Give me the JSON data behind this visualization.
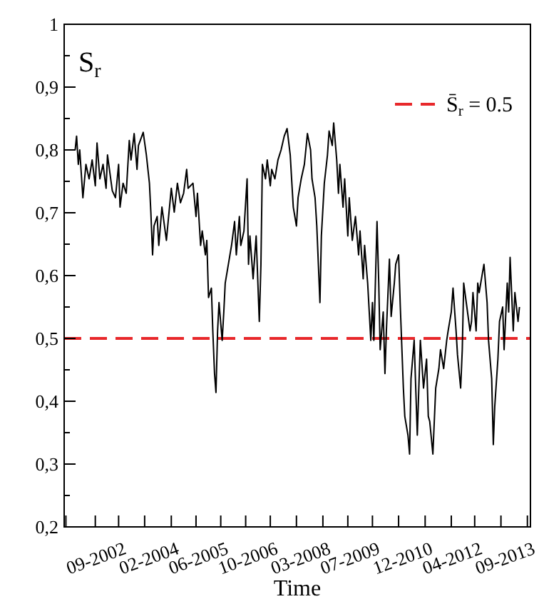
{
  "chart_data": {
    "type": "line",
    "xlabel": "Time",
    "annotations": [
      "S$_{r}$"
    ],
    "x": [
      "2001-07-01",
      "2001-07-15",
      "2001-08-01",
      "2001-08-15",
      "2001-09-15",
      "2001-10-15",
      "2001-11-15",
      "2001-12-15",
      "2002-01-15",
      "2002-02-01",
      "2002-03-01",
      "2002-04-01",
      "2002-05-01",
      "2002-05-15",
      "2002-07-01",
      "2002-08-01",
      "2002-09-01",
      "2002-09-15",
      "2002-10-15",
      "2002-11-15",
      "2002-12-15",
      "2003-01-01",
      "2003-02-01",
      "2003-03-01",
      "2003-03-15",
      "2003-05-01",
      "2003-06-01",
      "2003-07-01",
      "2003-07-15",
      "2003-08-01",
      "2003-08-15",
      "2003-09-15",
      "2003-10-01",
      "2003-11-01",
      "2003-12-15",
      "2004-01-01",
      "2004-02-01",
      "2004-03-01",
      "2004-04-01",
      "2004-05-01",
      "2004-06-01",
      "2004-07-01",
      "2004-07-15",
      "2004-09-01",
      "2004-10-01",
      "2004-10-15",
      "2004-11-15",
      "2004-12-01",
      "2005-01-01",
      "2005-01-15",
      "2005-02-01",
      "2005-03-01",
      "2005-03-15",
      "2005-04-01",
      "2005-04-15",
      "2005-05-01",
      "2005-05-15",
      "2005-06-15",
      "2005-07-01",
      "2005-07-15",
      "2005-08-15",
      "2005-09-15",
      "2005-10-15",
      "2005-11-01",
      "2005-12-01",
      "2005-12-15",
      "2006-01-15",
      "2006-02-15",
      "2006-03-01",
      "2006-03-15",
      "2006-04-15",
      "2006-05-15",
      "2006-06-01",
      "2006-06-15",
      "2006-07-01",
      "2006-07-15",
      "2006-08-15",
      "2006-09-01",
      "2006-10-01",
      "2006-10-15",
      "2006-11-15",
      "2006-12-15",
      "2007-01-15",
      "2007-02-15",
      "2007-03-15",
      "2007-04-15",
      "2007-05-01",
      "2007-05-15",
      "2007-06-15",
      "2007-07-01",
      "2007-08-01",
      "2007-09-01",
      "2007-10-01",
      "2007-11-01",
      "2007-11-15",
      "2007-12-15",
      "2008-01-01",
      "2008-02-01",
      "2008-02-15",
      "2008-03-15",
      "2008-04-15",
      "2008-05-01",
      "2008-06-01",
      "2008-06-15",
      "2008-07-15",
      "2008-08-01",
      "2008-08-15",
      "2008-09-15",
      "2008-10-01",
      "2008-11-01",
      "2008-11-15",
      "2008-12-15",
      "2009-01-15",
      "2009-02-15",
      "2009-03-01",
      "2009-04-01",
      "2009-04-15",
      "2009-05-15",
      "2009-06-15",
      "2009-07-01",
      "2009-07-15",
      "2009-08-15",
      "2009-09-01",
      "2009-09-15",
      "2009-10-15",
      "2009-11-01",
      "2009-11-15",
      "2009-12-15",
      "2010-01-01",
      "2010-02-01",
      "2010-02-15",
      "2010-03-15",
      "2010-04-01",
      "2010-05-01",
      "2010-05-15",
      "2010-06-15",
      "2010-07-01",
      "2010-07-15",
      "2010-08-15",
      "2010-09-01",
      "2010-09-15",
      "2010-10-15",
      "2010-11-15",
      "2010-12-15",
      "2011-01-01",
      "2011-01-15",
      "2011-02-15",
      "2011-03-15",
      "2011-04-15",
      "2011-05-01",
      "2011-06-01",
      "2011-07-01",
      "2011-07-15",
      "2011-08-15",
      "2011-09-01",
      "2011-10-01",
      "2011-10-15",
      "2011-11-15",
      "2011-12-01",
      "2011-12-15",
      "2012-01-15",
      "2012-02-15",
      "2012-03-01",
      "2012-03-15",
      "2012-04-15",
      "2012-05-01",
      "2012-05-15",
      "2012-06-15",
      "2012-07-01",
      "2012-08-01",
      "2012-08-15",
      "2012-09-15",
      "2012-10-01",
      "2012-10-15",
      "2012-11-15",
      "2012-12-01",
      "2013-01-01",
      "2013-01-15",
      "2013-02-15",
      "2013-03-01",
      "2013-03-15",
      "2013-04-15",
      "2013-05-01",
      "2013-06-01",
      "2013-06-15"
    ],
    "series": [
      {
        "color": "#000000",
        "values": [
          0.8,
          0.822,
          0.777,
          0.8,
          0.724,
          0.777,
          0.754,
          0.784,
          0.743,
          0.811,
          0.754,
          0.777,
          0.739,
          0.792,
          0.735,
          0.724,
          0.777,
          0.709,
          0.747,
          0.731,
          0.815,
          0.784,
          0.826,
          0.769,
          0.807,
          0.828,
          0.792,
          0.747,
          0.701,
          0.633,
          0.679,
          0.694,
          0.648,
          0.709,
          0.656,
          0.686,
          0.739,
          0.701,
          0.747,
          0.716,
          0.731,
          0.769,
          0.739,
          0.747,
          0.694,
          0.731,
          0.648,
          0.671,
          0.633,
          0.656,
          0.565,
          0.58,
          0.512,
          0.444,
          0.414,
          0.512,
          0.557,
          0.497,
          0.542,
          0.588,
          0.618,
          0.648,
          0.686,
          0.633,
          0.694,
          0.648,
          0.671,
          0.754,
          0.618,
          0.663,
          0.595,
          0.663,
          0.588,
          0.527,
          0.618,
          0.777,
          0.754,
          0.784,
          0.743,
          0.769,
          0.754,
          0.784,
          0.8,
          0.822,
          0.834,
          0.792,
          0.747,
          0.709,
          0.679,
          0.724,
          0.754,
          0.777,
          0.826,
          0.8,
          0.754,
          0.724,
          0.679,
          0.557,
          0.663,
          0.747,
          0.792,
          0.83,
          0.807,
          0.843,
          0.784,
          0.731,
          0.777,
          0.709,
          0.754,
          0.663,
          0.724,
          0.656,
          0.694,
          0.633,
          0.671,
          0.595,
          0.648,
          0.588,
          0.497,
          0.557,
          0.497,
          0.686,
          0.588,
          0.482,
          0.542,
          0.444,
          0.512,
          0.626,
          0.535,
          0.588,
          0.618,
          0.633,
          0.55,
          0.421,
          0.376,
          0.346,
          0.316,
          0.436,
          0.497,
          0.414,
          0.346,
          0.497,
          0.421,
          0.467,
          0.376,
          0.368,
          0.316,
          0.421,
          0.452,
          0.482,
          0.452,
          0.497,
          0.512,
          0.542,
          0.58,
          0.512,
          0.474,
          0.421,
          0.482,
          0.588,
          0.55,
          0.512,
          0.527,
          0.573,
          0.512,
          0.588,
          0.573,
          0.603,
          0.618,
          0.557,
          0.497,
          0.436,
          0.331,
          0.391,
          0.467,
          0.527,
          0.55,
          0.482,
          0.588,
          0.542,
          0.629,
          0.512,
          0.573,
          0.527,
          0.55
        ]
      }
    ],
    "xlim": [
      "2001-03-15",
      "2013-10-01"
    ],
    "xticks": [
      {
        "value": "2001-04-01",
        "label": null
      },
      {
        "value": "2002-01-15",
        "label": null
      },
      {
        "value": "2002-09-01",
        "label": "09-2002"
      },
      {
        "value": "2003-05-15",
        "label": null
      },
      {
        "value": "2004-02-01",
        "label": "02-2004"
      },
      {
        "value": "2004-10-01",
        "label": null
      },
      {
        "value": "2005-06-01",
        "label": "06-2005"
      },
      {
        "value": "2006-02-01",
        "label": null
      },
      {
        "value": "2006-10-01",
        "label": "10-2006"
      },
      {
        "value": "2007-06-15",
        "label": null
      },
      {
        "value": "2008-03-01",
        "label": "03-2008"
      },
      {
        "value": "2008-11-01",
        "label": null
      },
      {
        "value": "2009-07-01",
        "label": "07-2009"
      },
      {
        "value": "2010-03-15",
        "label": null
      },
      {
        "value": "2010-12-01",
        "label": "12-2010"
      },
      {
        "value": "2011-08-15",
        "label": null
      },
      {
        "value": "2012-04-01",
        "label": "04-2012"
      },
      {
        "value": "2012-12-15",
        "label": null
      },
      {
        "value": "2013-09-01",
        "label": "09-2013"
      }
    ],
    "ylim": [
      0.2,
      1
    ],
    "yticks": [
      {
        "value": 0.2,
        "label": "0,2"
      },
      {
        "value": 0.25,
        "label": null
      },
      {
        "value": 0.3,
        "label": "0,3"
      },
      {
        "value": 0.35,
        "label": null
      },
      {
        "value": 0.4,
        "label": "0,4"
      },
      {
        "value": 0.45,
        "label": null
      },
      {
        "value": 0.5,
        "label": "0,5"
      },
      {
        "value": 0.55,
        "label": null
      },
      {
        "value": 0.6,
        "label": "0,6"
      },
      {
        "value": 0.65,
        "label": null
      },
      {
        "value": 0.7,
        "label": "0,7"
      },
      {
        "value": 0.75,
        "label": null
      },
      {
        "value": 0.8,
        "label": "0,8"
      },
      {
        "value": 0.85,
        "label": null
      },
      {
        "value": 0.9,
        "label": "0,9"
      },
      {
        "value": 0.95,
        "label": null
      },
      1
    ],
    "ref_lines": [
      {
        "axis": "y",
        "value": 0.5,
        "label": "S̄$_{r}$ = 0.5",
        "color": "#e8282b",
        "line_style": "dashed"
      }
    ],
    "legend": "top right",
    "grid": false,
    "marker": "none",
    "line_style": "solid"
  }
}
